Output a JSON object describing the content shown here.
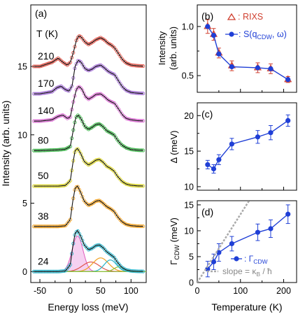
{
  "chart_data": [
    {
      "panel": "(a)",
      "type": "line",
      "xlabel": "Energy loss (meV)",
      "ylabel": "Intensity (arb. units)",
      "xlim": [
        -65,
        125
      ],
      "ylim": [
        -0.8,
        19.5
      ],
      "xticks": [
        -50,
        0,
        50,
        100
      ],
      "yticks": [
        0,
        5,
        10,
        15
      ],
      "temperature_header": "T (K)",
      "grid": false,
      "series": [
        {
          "name": "210",
          "offset": 15.0,
          "points": [
            [
              -50,
              0
            ],
            [
              -30,
              0.3
            ],
            [
              -20,
              0.6
            ],
            [
              -12,
              0.3
            ],
            [
              -5,
              0.1
            ],
            [
              0,
              0.3
            ],
            [
              5,
              1.0
            ],
            [
              10,
              1.9
            ],
            [
              14,
              2.25
            ],
            [
              18,
              2.15
            ],
            [
              24,
              1.8
            ],
            [
              30,
              1.6
            ],
            [
              36,
              1.75
            ],
            [
              42,
              1.95
            ],
            [
              50,
              2.1
            ],
            [
              56,
              1.95
            ],
            [
              62,
              1.7
            ],
            [
              68,
              1.55
            ],
            [
              73,
              1.35
            ],
            [
              80,
              0.9
            ],
            [
              86,
              0.5
            ],
            [
              92,
              0.25
            ],
            [
              100,
              0.1
            ],
            [
              110,
              0.05
            ],
            [
              120,
              0.02
            ]
          ]
        },
        {
          "name": "170",
          "offset": 13.0,
          "points": [
            [
              -50,
              0
            ],
            [
              -30,
              0.15
            ],
            [
              -22,
              0.45
            ],
            [
              -15,
              0.55
            ],
            [
              -8,
              0.3
            ],
            [
              -2,
              0.2
            ],
            [
              3,
              0.6
            ],
            [
              8,
              2.0
            ],
            [
              13,
              2.45
            ],
            [
              18,
              2.3
            ],
            [
              24,
              1.85
            ],
            [
              30,
              1.7
            ],
            [
              36,
              1.8
            ],
            [
              42,
              2.0
            ],
            [
              50,
              2.1
            ],
            [
              56,
              1.9
            ],
            [
              62,
              1.65
            ],
            [
              68,
              1.5
            ],
            [
              73,
              1.4
            ],
            [
              80,
              0.9
            ],
            [
              86,
              0.5
            ],
            [
              92,
              0.25
            ],
            [
              100,
              0.1
            ],
            [
              110,
              0.05
            ],
            [
              120,
              0.02
            ]
          ]
        },
        {
          "name": "140",
          "offset": 11.0,
          "points": [
            [
              -50,
              0
            ],
            [
              -30,
              0.1
            ],
            [
              -20,
              0.35
            ],
            [
              -12,
              0.45
            ],
            [
              -5,
              0.2
            ],
            [
              0,
              0.3
            ],
            [
              5,
              1.4
            ],
            [
              10,
              2.3
            ],
            [
              14,
              2.55
            ],
            [
              19,
              2.35
            ],
            [
              25,
              1.8
            ],
            [
              30,
              1.6
            ],
            [
              36,
              1.75
            ],
            [
              42,
              1.95
            ],
            [
              50,
              2.0
            ],
            [
              56,
              1.8
            ],
            [
              62,
              1.55
            ],
            [
              68,
              1.4
            ],
            [
              73,
              1.3
            ],
            [
              80,
              0.85
            ],
            [
              86,
              0.45
            ],
            [
              92,
              0.2
            ],
            [
              100,
              0.1
            ],
            [
              110,
              0.04
            ],
            [
              120,
              0.02
            ]
          ]
        },
        {
          "name": "80",
          "offset": 8.85,
          "points": [
            [
              -50,
              0
            ],
            [
              -20,
              0.05
            ],
            [
              -8,
              0.1
            ],
            [
              0,
              0.3
            ],
            [
              5,
              1.5
            ],
            [
              9,
              2.4
            ],
            [
              13,
              2.6
            ],
            [
              18,
              2.3
            ],
            [
              24,
              1.75
            ],
            [
              30,
              1.55
            ],
            [
              36,
              1.7
            ],
            [
              42,
              1.9
            ],
            [
              48,
              1.95
            ],
            [
              54,
              1.75
            ],
            [
              60,
              1.45
            ],
            [
              66,
              1.3
            ],
            [
              72,
              1.15
            ],
            [
              78,
              0.75
            ],
            [
              85,
              0.4
            ],
            [
              92,
              0.2
            ],
            [
              100,
              0.08
            ],
            [
              110,
              0.03
            ],
            [
              120,
              0.01
            ]
          ]
        },
        {
          "name": "50",
          "offset": 6.25,
          "points": [
            [
              -50,
              0
            ],
            [
              -20,
              0
            ],
            [
              -8,
              0.05
            ],
            [
              0,
              0.4
            ],
            [
              4,
              1.6
            ],
            [
              8,
              2.6
            ],
            [
              12,
              2.75
            ],
            [
              17,
              2.4
            ],
            [
              23,
              1.8
            ],
            [
              30,
              1.55
            ],
            [
              36,
              1.7
            ],
            [
              42,
              1.9
            ],
            [
              48,
              1.95
            ],
            [
              54,
              1.75
            ],
            [
              60,
              1.45
            ],
            [
              66,
              1.3
            ],
            [
              72,
              1.1
            ],
            [
              78,
              0.7
            ],
            [
              85,
              0.35
            ],
            [
              92,
              0.15
            ],
            [
              100,
              0.06
            ],
            [
              110,
              0.02
            ],
            [
              120,
              0.01
            ]
          ]
        },
        {
          "name": "38",
          "offset": 3.3,
          "points": [
            [
              -50,
              0
            ],
            [
              -20,
              0
            ],
            [
              -8,
              0.05
            ],
            [
              0,
              0.5
            ],
            [
              4,
              1.8
            ],
            [
              8,
              2.8
            ],
            [
              12,
              2.95
            ],
            [
              17,
              2.5
            ],
            [
              23,
              1.85
            ],
            [
              30,
              1.55
            ],
            [
              36,
              1.65
            ],
            [
              42,
              1.85
            ],
            [
              48,
              1.9
            ],
            [
              54,
              1.7
            ],
            [
              60,
              1.45
            ],
            [
              66,
              1.3
            ],
            [
              72,
              1.1
            ],
            [
              78,
              0.7
            ],
            [
              85,
              0.35
            ],
            [
              92,
              0.15
            ],
            [
              100,
              0.06
            ],
            [
              110,
              0.02
            ],
            [
              120,
              0.01
            ]
          ]
        },
        {
          "name": "24",
          "offset": 0.0,
          "points": [
            [
              -50,
              0
            ],
            [
              -20,
              0
            ],
            [
              -8,
              0.05
            ],
            [
              0,
              0.5
            ],
            [
              4,
              1.8
            ],
            [
              8,
              2.8
            ],
            [
              12,
              3.0
            ],
            [
              17,
              2.6
            ],
            [
              23,
              1.95
            ],
            [
              30,
              1.6
            ],
            [
              36,
              1.7
            ],
            [
              42,
              1.9
            ],
            [
              48,
              1.95
            ],
            [
              54,
              1.75
            ],
            [
              60,
              1.45
            ],
            [
              66,
              1.25
            ],
            [
              72,
              1.05
            ],
            [
              78,
              0.65
            ],
            [
              85,
              0.3
            ],
            [
              92,
              0.12
            ],
            [
              100,
              0.05
            ],
            [
              110,
              0.02
            ],
            [
              120,
              0.01
            ]
          ]
        }
      ],
      "components_24K": [
        {
          "color": "#e05cbd",
          "center": 12,
          "height": 2.6,
          "width": 9,
          "filled": true
        },
        {
          "color": "#e0554a",
          "center": 34,
          "height": 0.7,
          "width": 14,
          "filled": false
        },
        {
          "color": "#f0a020",
          "center": 50,
          "height": 1.0,
          "width": 13,
          "filled": false
        },
        {
          "color": "#2bb3c9",
          "center": 66,
          "height": 0.85,
          "width": 10,
          "filled": false
        },
        {
          "color": "#8cc43a",
          "center": 80,
          "height": 0.35,
          "width": 8,
          "filled": false
        }
      ],
      "colors": {
        "210": "#e0554a",
        "170": "#a16cd4",
        "140": "#d96ad2",
        "80": "#3bb449",
        "50": "#d8d22a",
        "38": "#f0a020",
        "24": "#2bb3c9",
        "fit": "#111111"
      }
    },
    {
      "panel": "(b)",
      "type": "scatter",
      "ylabel": "Intensity\n(arb. units)",
      "xlim": [
        0,
        230
      ],
      "ylim": [
        0.33,
        1.22
      ],
      "yticks": [
        0.5,
        1.0
      ],
      "ytick_labels": [
        "0.5",
        "1.0"
      ],
      "xticks": [
        0,
        100,
        200
      ],
      "legend": {
        "location": "top-right",
        "entries": [
          "△ : RIXS",
          "●: S(q_CDW, ω)"
        ]
      },
      "series": [
        {
          "name": "RIXS",
          "marker": "triangle-open",
          "color": "#d04030",
          "x": [
            24,
            38,
            50,
            80,
            140,
            170,
            210
          ],
          "y": [
            1.0,
            0.92,
            0.73,
            0.6,
            0.58,
            0.57,
            0.46
          ],
          "err": [
            0.07,
            0.06,
            0.05,
            0.05,
            0.05,
            0.05,
            0.03
          ]
        },
        {
          "name": "S(q_CDW, ω)",
          "marker": "circle-filled",
          "color": "#1f3fd6",
          "x": [
            24,
            38,
            50,
            80,
            140,
            170,
            210
          ],
          "y": [
            1.0,
            0.91,
            0.72,
            0.59,
            0.58,
            0.57,
            0.46
          ],
          "err": [
            0,
            0,
            0,
            0,
            0,
            0,
            0
          ]
        }
      ]
    },
    {
      "panel": "(c)",
      "type": "scatter",
      "ylabel": "Δ (meV)",
      "xlim": [
        0,
        230
      ],
      "ylim": [
        9.5,
        21.8
      ],
      "yticks": [
        10,
        15,
        20
      ],
      "ytick_labels": [
        "10",
        "15",
        "20"
      ],
      "xticks": [
        0,
        100,
        200
      ],
      "series": [
        {
          "name": "",
          "marker": "circle-filled",
          "color": "#1f3fd6",
          "x": [
            24,
            38,
            50,
            80,
            140,
            170,
            210
          ],
          "y": [
            13.1,
            12.5,
            13.8,
            16.0,
            17.0,
            17.6,
            19.3
          ],
          "err": [
            0.6,
            0.6,
            0.7,
            0.8,
            0.9,
            1.0,
            0.8
          ]
        }
      ]
    },
    {
      "panel": "(d)",
      "type": "scatter",
      "xlabel": "Temperature (K)",
      "ylabel": "Γ_CDW (meV)",
      "xlim": [
        0,
        230
      ],
      "ylim": [
        0,
        15.8
      ],
      "xticks": [
        0,
        100,
        200
      ],
      "yticks": [
        0,
        5,
        10,
        15
      ],
      "ytick_labels": [
        "0",
        "5",
        "10",
        "15"
      ],
      "legend": {
        "location": "bottom-right",
        "entries": [
          "●: Γ_CDW",
          "slope = κ_B / ħ"
        ]
      },
      "series": [
        {
          "name": "Γ_CDW",
          "marker": "circle-filled",
          "color": "#1f3fd6",
          "x": [
            24,
            38,
            50,
            80,
            140,
            170,
            210
          ],
          "y": [
            2.6,
            4.0,
            5.8,
            7.5,
            9.7,
            10.4,
            13.2
          ],
          "err": [
            1.5,
            1.5,
            1.7,
            1.4,
            1.6,
            1.7,
            1.8
          ]
        },
        {
          "name": "slope = κ_B / ħ",
          "marker": "none",
          "color": "#aaaaaa",
          "dashed": true,
          "x": [
            0,
            120
          ],
          "y": [
            0,
            15.8
          ]
        }
      ]
    }
  ],
  "labels": {
    "panel_a": "(a)",
    "panel_b": "(b)",
    "panel_c": "(c)",
    "panel_d": "(d)",
    "temp_header": "T (K)",
    "a_xlabel": "Energy loss (meV)",
    "a_ylabel": "Intensity (arb. units)",
    "b_ylabel_1": "Intensity",
    "b_ylabel_2": "(arb. units)",
    "b_legend_rixs": ": RIXS",
    "b_legend_s": ": S(q",
    "b_legend_s_sub": "CDW",
    "b_legend_s_end": ", ω)",
    "c_ylabel": "Δ (meV)",
    "d_ylabel": "Γ",
    "d_ylabel_sub": "CDW",
    "d_ylabel_end": " (meV)",
    "d_legend_g": ": Γ",
    "d_legend_g_sub": "CDW",
    "d_legend_slope": "slope = κ",
    "d_legend_slope_sub": "B",
    "d_legend_slope_end": " / ħ",
    "d_xlabel": "Temperature (K)"
  }
}
